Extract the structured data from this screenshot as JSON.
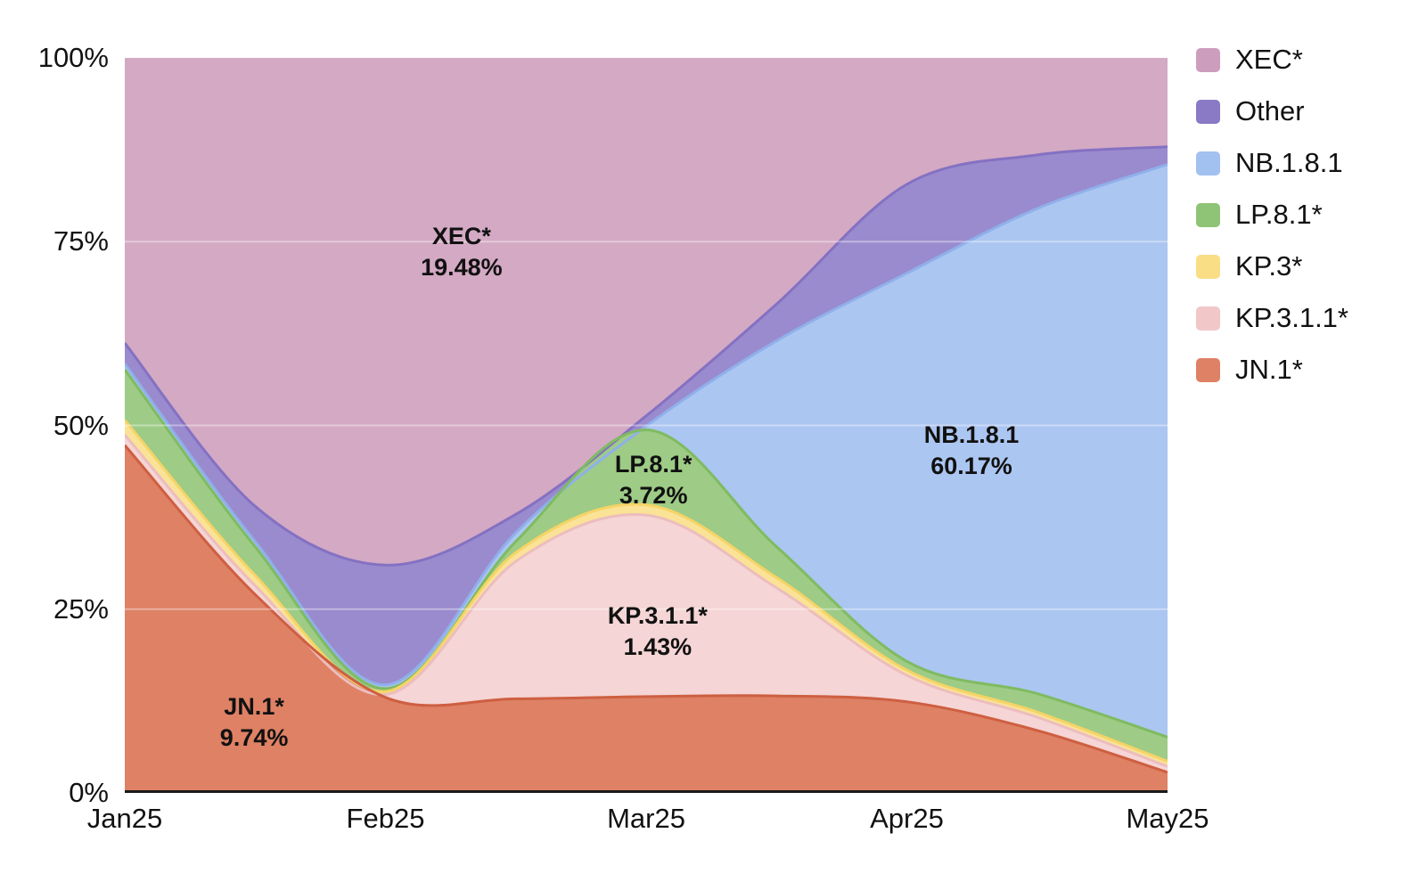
{
  "chart_data": {
    "type": "area",
    "subtype": "stacked-100-percent",
    "xlabel": "",
    "ylabel": "",
    "ylim": [
      0,
      100
    ],
    "grid": "horizontal",
    "gridline_pcts": [
      25,
      50,
      75
    ],
    "legend_position": "right",
    "x_ticks": [
      {
        "label": "Jan25",
        "f": 0.0
      },
      {
        "label": "Feb25",
        "f": 0.25
      },
      {
        "label": "Mar25",
        "f": 0.5
      },
      {
        "label": "Apr25",
        "f": 0.75
      },
      {
        "label": "May25",
        "f": 1.0
      }
    ],
    "y_ticks": [
      {
        "label": "0%",
        "pct": 0
      },
      {
        "label": "25%",
        "pct": 25
      },
      {
        "label": "50%",
        "pct": 50
      },
      {
        "label": "75%",
        "pct": 75
      },
      {
        "label": "100%",
        "pct": 100
      }
    ],
    "sample_fractions": [
      0,
      0.125,
      0.25,
      0.375,
      0.5,
      0.625,
      0.75,
      0.875,
      1
    ],
    "series": [
      {
        "id": "jn1",
        "name": "JN.1*",
        "fill": "#DE8165",
        "stroke": "#CE5F41",
        "values": [
          47.3,
          27.0,
          13.0,
          12.8,
          13.1,
          13.2,
          12.4,
          8.5,
          2.8
        ]
      },
      {
        "id": "kp311",
        "name": "KP.3.1.1*",
        "fill": "#F5D5D5",
        "stroke": "#ECBDBE",
        "values": [
          1.4,
          1.2,
          0.4,
          18.7,
          24.7,
          14.7,
          3.6,
          1.8,
          0.8
        ]
      },
      {
        "id": "kp3",
        "name": "KP.3*",
        "fill": "#FAE296",
        "stroke": "#F5D466",
        "values": [
          2.0,
          1.4,
          0.4,
          1.2,
          1.4,
          1.4,
          0.7,
          0.7,
          0.7
        ]
      },
      {
        "id": "lp81",
        "name": "LP.8.1*",
        "fill": "#9ECB86",
        "stroke": "#7FBB61",
        "values": [
          6.9,
          3.9,
          0.4,
          1.5,
          10.2,
          4.2,
          1.2,
          2.5,
          3.3
        ]
      },
      {
        "id": "nb181",
        "name": "NB.1.8.1",
        "fill": "#ABC6F1",
        "stroke": "#8FB0EA",
        "values": [
          0.8,
          0.7,
          0.5,
          1.2,
          0.5,
          28.0,
          52.8,
          66.0,
          77.9
        ]
      },
      {
        "id": "other",
        "name": "Other",
        "fill": "#9A8BCE",
        "stroke": "#8471C2",
        "values": [
          2.8,
          4.8,
          16.3,
          2.5,
          1.4,
          5.0,
          12.1,
          7.3,
          2.4
        ]
      },
      {
        "id": "xec",
        "name": "XEC*",
        "fill": "#D3A9C4",
        "stroke": "#C792B4",
        "values": [
          38.8,
          61.0,
          69.0,
          62.1,
          48.7,
          33.5,
          17.2,
          13.2,
          12.1
        ]
      }
    ],
    "annotations": [
      {
        "series": "xec",
        "line1": "XEC*",
        "line2": "19.48%",
        "fx": 0.323,
        "pct": 73.6
      },
      {
        "series": "jn1",
        "line1": "JN.1*",
        "line2": "9.74%",
        "fx": 0.124,
        "pct": 9.6
      },
      {
        "series": "lp81",
        "line1": "LP.8.1*",
        "line2": "3.72%",
        "fx": 0.507,
        "pct": 42.6
      },
      {
        "series": "kp311",
        "line1": "KP.3.1.1*",
        "line2": "1.43%",
        "fx": 0.511,
        "pct": 22.0
      },
      {
        "series": "nb181",
        "line1": "NB.1.8.1",
        "line2": "60.17%",
        "fx": 0.812,
        "pct": 46.6
      }
    ],
    "legend": [
      {
        "label": "XEC*",
        "color": "#CD9DBE"
      },
      {
        "label": "Other",
        "color": "#8A79C5"
      },
      {
        "label": "NB.1.8.1",
        "color": "#A2C0F0"
      },
      {
        "label": "LP.8.1*",
        "color": "#8FC477"
      },
      {
        "label": "KP.3*",
        "color": "#F9DE85"
      },
      {
        "label": "KP.3.1.1*",
        "color": "#F1C7C8"
      },
      {
        "label": "JN.1*",
        "color": "#DE8165"
      }
    ],
    "axis_line_color": "#1a1a1a",
    "gridline_color": "rgba(255,255,255,0.38)"
  }
}
